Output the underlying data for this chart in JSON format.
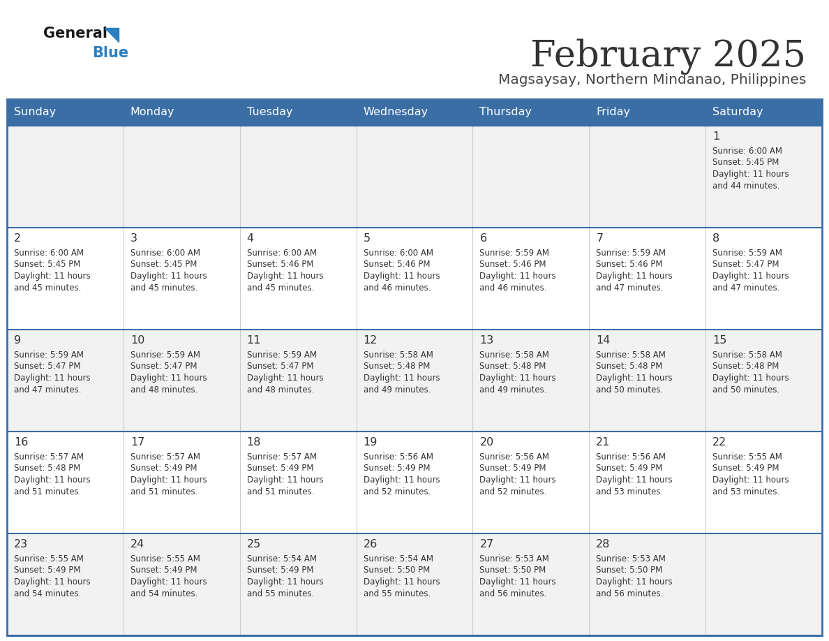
{
  "title": "February 2025",
  "subtitle": "Magsaysay, Northern Mindanao, Philippines",
  "days_of_week": [
    "Sunday",
    "Monday",
    "Tuesday",
    "Wednesday",
    "Thursday",
    "Friday",
    "Saturday"
  ],
  "header_bg": "#3a6ea5",
  "header_text_color": "#ffffff",
  "cell_bg_light": "#f2f2f2",
  "cell_bg_white": "#ffffff",
  "border_color": "#3a6ea5",
  "cell_border_color": "#cccccc",
  "title_color": "#333333",
  "subtitle_color": "#444444",
  "day_number_color": "#333333",
  "info_color": "#333333",
  "logo_general_color": "#1a1a1a",
  "logo_blue_color": "#2a7fc1",
  "calendar_data": [
    [
      null,
      null,
      null,
      null,
      null,
      null,
      {
        "day": 1,
        "sunrise": "6:00 AM",
        "sunset": "5:45 PM",
        "daylight_hours": 11,
        "daylight_minutes": 44
      }
    ],
    [
      {
        "day": 2,
        "sunrise": "6:00 AM",
        "sunset": "5:45 PM",
        "daylight_hours": 11,
        "daylight_minutes": 45
      },
      {
        "day": 3,
        "sunrise": "6:00 AM",
        "sunset": "5:45 PM",
        "daylight_hours": 11,
        "daylight_minutes": 45
      },
      {
        "day": 4,
        "sunrise": "6:00 AM",
        "sunset": "5:46 PM",
        "daylight_hours": 11,
        "daylight_minutes": 45
      },
      {
        "day": 5,
        "sunrise": "6:00 AM",
        "sunset": "5:46 PM",
        "daylight_hours": 11,
        "daylight_minutes": 46
      },
      {
        "day": 6,
        "sunrise": "5:59 AM",
        "sunset": "5:46 PM",
        "daylight_hours": 11,
        "daylight_minutes": 46
      },
      {
        "day": 7,
        "sunrise": "5:59 AM",
        "sunset": "5:46 PM",
        "daylight_hours": 11,
        "daylight_minutes": 47
      },
      {
        "day": 8,
        "sunrise": "5:59 AM",
        "sunset": "5:47 PM",
        "daylight_hours": 11,
        "daylight_minutes": 47
      }
    ],
    [
      {
        "day": 9,
        "sunrise": "5:59 AM",
        "sunset": "5:47 PM",
        "daylight_hours": 11,
        "daylight_minutes": 47
      },
      {
        "day": 10,
        "sunrise": "5:59 AM",
        "sunset": "5:47 PM",
        "daylight_hours": 11,
        "daylight_minutes": 48
      },
      {
        "day": 11,
        "sunrise": "5:59 AM",
        "sunset": "5:47 PM",
        "daylight_hours": 11,
        "daylight_minutes": 48
      },
      {
        "day": 12,
        "sunrise": "5:58 AM",
        "sunset": "5:48 PM",
        "daylight_hours": 11,
        "daylight_minutes": 49
      },
      {
        "day": 13,
        "sunrise": "5:58 AM",
        "sunset": "5:48 PM",
        "daylight_hours": 11,
        "daylight_minutes": 49
      },
      {
        "day": 14,
        "sunrise": "5:58 AM",
        "sunset": "5:48 PM",
        "daylight_hours": 11,
        "daylight_minutes": 50
      },
      {
        "day": 15,
        "sunrise": "5:58 AM",
        "sunset": "5:48 PM",
        "daylight_hours": 11,
        "daylight_minutes": 50
      }
    ],
    [
      {
        "day": 16,
        "sunrise": "5:57 AM",
        "sunset": "5:48 PM",
        "daylight_hours": 11,
        "daylight_minutes": 51
      },
      {
        "day": 17,
        "sunrise": "5:57 AM",
        "sunset": "5:49 PM",
        "daylight_hours": 11,
        "daylight_minutes": 51
      },
      {
        "day": 18,
        "sunrise": "5:57 AM",
        "sunset": "5:49 PM",
        "daylight_hours": 11,
        "daylight_minutes": 51
      },
      {
        "day": 19,
        "sunrise": "5:56 AM",
        "sunset": "5:49 PM",
        "daylight_hours": 11,
        "daylight_minutes": 52
      },
      {
        "day": 20,
        "sunrise": "5:56 AM",
        "sunset": "5:49 PM",
        "daylight_hours": 11,
        "daylight_minutes": 52
      },
      {
        "day": 21,
        "sunrise": "5:56 AM",
        "sunset": "5:49 PM",
        "daylight_hours": 11,
        "daylight_minutes": 53
      },
      {
        "day": 22,
        "sunrise": "5:55 AM",
        "sunset": "5:49 PM",
        "daylight_hours": 11,
        "daylight_minutes": 53
      }
    ],
    [
      {
        "day": 23,
        "sunrise": "5:55 AM",
        "sunset": "5:49 PM",
        "daylight_hours": 11,
        "daylight_minutes": 54
      },
      {
        "day": 24,
        "sunrise": "5:55 AM",
        "sunset": "5:49 PM",
        "daylight_hours": 11,
        "daylight_minutes": 54
      },
      {
        "day": 25,
        "sunrise": "5:54 AM",
        "sunset": "5:49 PM",
        "daylight_hours": 11,
        "daylight_minutes": 55
      },
      {
        "day": 26,
        "sunrise": "5:54 AM",
        "sunset": "5:50 PM",
        "daylight_hours": 11,
        "daylight_minutes": 55
      },
      {
        "day": 27,
        "sunrise": "5:53 AM",
        "sunset": "5:50 PM",
        "daylight_hours": 11,
        "daylight_minutes": 56
      },
      {
        "day": 28,
        "sunrise": "5:53 AM",
        "sunset": "5:50 PM",
        "daylight_hours": 11,
        "daylight_minutes": 56
      },
      null
    ]
  ]
}
